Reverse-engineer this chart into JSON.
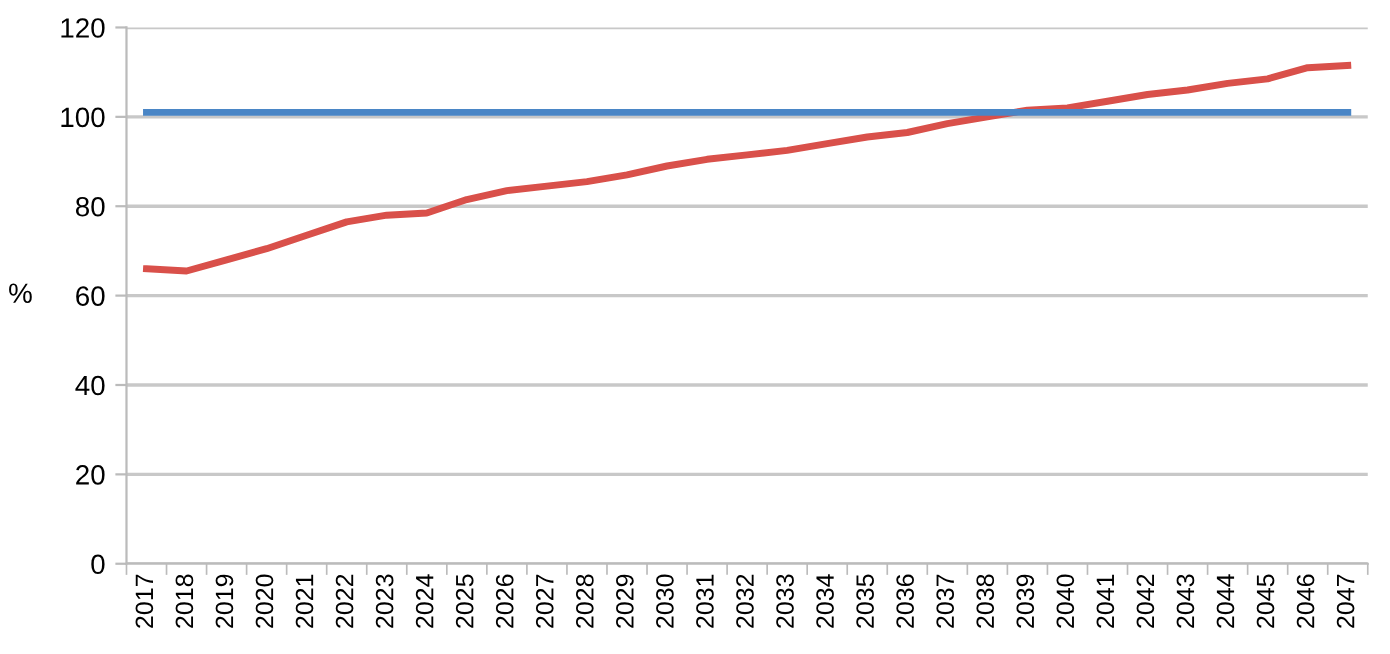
{
  "chart_data": {
    "type": "line",
    "ylabel": "%",
    "categories": [
      "2017",
      "2018",
      "2019",
      "2020",
      "2021",
      "2022",
      "2023",
      "2024",
      "2025",
      "2026",
      "2027",
      "2028",
      "2029",
      "2030",
      "2031",
      "2032",
      "2033",
      "2034",
      "2035",
      "2036",
      "2037",
      "2038",
      "2039",
      "2040",
      "2041",
      "2042",
      "2043",
      "2044",
      "2045",
      "2046",
      "2047"
    ],
    "series": [
      {
        "color": "#d9504a",
        "values": [
          66,
          65.5,
          68,
          70.5,
          73.5,
          76.5,
          78,
          78.5,
          81.5,
          83.5,
          84.5,
          85.5,
          87,
          89,
          90.5,
          91.5,
          92.5,
          94,
          95.5,
          96.5,
          98.5,
          100,
          101.5,
          102,
          103.5,
          105,
          106,
          107.5,
          108.5,
          111,
          111.5
        ]
      },
      {
        "color": "#4a86c6",
        "values": [
          101,
          101,
          101,
          101,
          101,
          101,
          101,
          101,
          101,
          101,
          101,
          101,
          101,
          101,
          101,
          101,
          101,
          101,
          101,
          101,
          101,
          101,
          101,
          101,
          101,
          101,
          101,
          101,
          101,
          101,
          101
        ]
      }
    ],
    "ylim": [
      0,
      120
    ],
    "yticks": [
      0,
      20,
      40,
      60,
      80,
      100,
      120
    ],
    "grid": "y",
    "marker": "none",
    "line_style": "solid"
  }
}
